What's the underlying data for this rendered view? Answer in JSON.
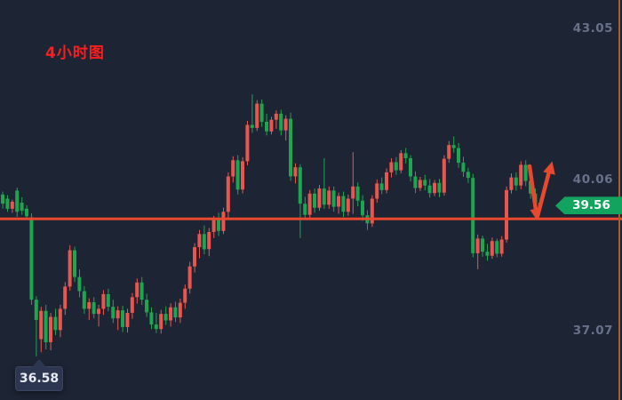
{
  "title": {
    "text": "4小时图"
  },
  "axis": {
    "labels": [
      {
        "text": "43.05",
        "price": 43.05
      },
      {
        "text": "40.06",
        "price": 40.06
      },
      {
        "text": "37.07",
        "price": 37.07
      }
    ]
  },
  "price_badge": {
    "text": "39.56",
    "value": 39.56
  },
  "low_tooltip": {
    "text": "36.58",
    "value": 36.58
  },
  "annotations": {
    "support_line": {
      "price": 39.3
    },
    "bounce_arrow": {
      "description": "hand-drawn arrow: dips to support line then points up"
    }
  },
  "colors": {
    "bg": "#1d2434",
    "title": "#fa1e1e",
    "axis_text": "#68718a",
    "up": "#e8564f",
    "down": "#1ea54f",
    "line": "#e8492f",
    "arrow": "#e6492d",
    "badge": "#12a45f",
    "tooltip_bg": "#2c3650",
    "edge_line": "#a75d31"
  },
  "chart_data": {
    "type": "candlestick",
    "timeframe": "4小时图 (4-hour chart)",
    "color_convention": "chinese: red = up, green = down",
    "price_axis_ticks": [
      43.05,
      40.06,
      37.07
    ],
    "current_price": 39.56,
    "marked_low": 36.58,
    "support_line_price": 39.3,
    "candles_ohlc": [
      [
        39.78,
        39.84,
        39.5,
        39.6
      ],
      [
        39.7,
        39.77,
        39.44,
        39.5
      ],
      [
        39.5,
        39.68,
        39.42,
        39.64
      ],
      [
        39.86,
        39.92,
        39.34,
        39.44
      ],
      [
        39.62,
        39.73,
        39.38,
        39.46
      ],
      [
        39.5,
        39.57,
        39.28,
        39.35
      ],
      [
        39.33,
        39.41,
        37.6,
        37.7
      ],
      [
        37.7,
        37.77,
        36.58,
        37.3
      ],
      [
        36.92,
        37.56,
        36.66,
        37.48
      ],
      [
        37.48,
        37.6,
        36.72,
        36.86
      ],
      [
        36.86,
        37.44,
        36.7,
        37.36
      ],
      [
        37.36,
        37.52,
        37.0,
        37.1
      ],
      [
        37.1,
        37.6,
        36.96,
        37.52
      ],
      [
        37.52,
        38.05,
        37.4,
        37.96
      ],
      [
        37.96,
        38.78,
        37.88,
        38.68
      ],
      [
        38.68,
        38.75,
        38.05,
        38.15
      ],
      [
        38.15,
        38.3,
        37.75,
        37.87
      ],
      [
        37.87,
        37.97,
        37.42,
        37.52
      ],
      [
        37.52,
        37.73,
        37.3,
        37.65
      ],
      [
        37.65,
        37.75,
        37.33,
        37.42
      ],
      [
        37.42,
        37.6,
        37.17,
        37.52
      ],
      [
        37.52,
        37.89,
        37.4,
        37.81
      ],
      [
        37.81,
        37.92,
        37.47,
        37.56
      ],
      [
        37.56,
        37.7,
        37.24,
        37.33
      ],
      [
        37.33,
        37.57,
        37.1,
        37.49
      ],
      [
        37.49,
        37.58,
        37.06,
        37.16
      ],
      [
        37.16,
        37.52,
        37.05,
        37.44
      ],
      [
        37.44,
        37.83,
        37.32,
        37.75
      ],
      [
        37.75,
        38.12,
        37.62,
        38.04
      ],
      [
        38.04,
        38.15,
        37.6,
        37.7
      ],
      [
        37.7,
        37.82,
        37.36,
        37.45
      ],
      [
        37.45,
        37.55,
        37.12,
        37.21
      ],
      [
        37.21,
        37.44,
        37.04,
        37.12
      ],
      [
        37.12,
        37.5,
        37.03,
        37.42
      ],
      [
        37.42,
        37.57,
        37.2,
        37.29
      ],
      [
        37.29,
        37.63,
        37.17,
        37.55
      ],
      [
        37.55,
        37.66,
        37.26,
        37.35
      ],
      [
        37.35,
        37.72,
        37.24,
        37.64
      ],
      [
        37.64,
        38.0,
        37.52,
        37.92
      ],
      [
        37.92,
        38.45,
        37.82,
        38.36
      ],
      [
        38.36,
        38.82,
        38.24,
        38.74
      ],
      [
        38.74,
        39.08,
        38.52,
        39.0
      ],
      [
        39.0,
        39.17,
        38.6,
        38.7
      ],
      [
        38.7,
        39.12,
        38.56,
        39.04
      ],
      [
        39.04,
        39.36,
        38.92,
        39.28
      ],
      [
        39.28,
        39.42,
        38.96,
        39.06
      ],
      [
        39.06,
        39.52,
        39.0,
        39.44
      ],
      [
        39.44,
        40.22,
        39.32,
        40.14
      ],
      [
        40.14,
        40.54,
        40.02,
        40.46
      ],
      [
        40.46,
        40.56,
        39.78,
        39.88
      ],
      [
        39.88,
        40.52,
        39.8,
        40.44
      ],
      [
        40.44,
        41.24,
        40.36,
        41.16
      ],
      [
        41.16,
        41.76,
        41.0,
        41.1
      ],
      [
        41.1,
        41.65,
        41.04,
        41.58
      ],
      [
        41.58,
        41.66,
        41.12,
        41.22
      ],
      [
        41.22,
        41.38,
        40.95,
        41.03
      ],
      [
        41.03,
        41.32,
        40.97,
        41.26
      ],
      [
        41.26,
        41.45,
        41.08,
        41.38
      ],
      [
        41.38,
        41.46,
        40.95,
        41.05
      ],
      [
        41.05,
        41.35,
        40.85,
        41.28
      ],
      [
        41.28,
        41.4,
        40.05,
        40.14
      ],
      [
        40.14,
        40.4,
        40.0,
        40.32
      ],
      [
        40.32,
        40.38,
        38.92,
        39.6
      ],
      [
        39.6,
        39.74,
        39.28,
        39.38
      ],
      [
        39.38,
        39.87,
        39.3,
        39.8
      ],
      [
        39.8,
        39.9,
        39.42,
        39.52
      ],
      [
        39.52,
        39.97,
        39.46,
        39.9
      ],
      [
        39.9,
        40.5,
        39.5,
        39.58
      ],
      [
        39.58,
        39.94,
        39.5,
        39.86
      ],
      [
        39.86,
        39.94,
        39.44,
        39.54
      ],
      [
        39.54,
        39.82,
        39.4,
        39.75
      ],
      [
        39.75,
        39.84,
        39.34,
        39.44
      ],
      [
        39.44,
        39.78,
        39.36,
        39.7
      ],
      [
        39.7,
        40.62,
        39.4,
        39.94
      ],
      [
        39.94,
        40.02,
        39.55,
        39.66
      ],
      [
        39.66,
        39.77,
        39.26,
        39.37
      ],
      [
        39.37,
        39.47,
        39.08,
        39.21
      ],
      [
        39.21,
        39.77,
        39.14,
        39.7
      ],
      [
        39.7,
        40.08,
        39.62,
        40.0
      ],
      [
        40.0,
        40.12,
        39.79,
        39.87
      ],
      [
        39.87,
        40.3,
        39.81,
        40.22
      ],
      [
        40.22,
        40.5,
        40.12,
        40.42
      ],
      [
        40.42,
        40.52,
        40.17,
        40.26
      ],
      [
        40.26,
        40.66,
        40.2,
        40.6
      ],
      [
        40.6,
        40.7,
        40.4,
        40.5
      ],
      [
        40.5,
        40.56,
        40.04,
        40.14
      ],
      [
        40.14,
        40.24,
        39.81,
        39.91
      ],
      [
        39.91,
        40.13,
        39.85,
        40.07
      ],
      [
        40.07,
        40.17,
        39.86,
        39.96
      ],
      [
        39.96,
        40.09,
        39.72,
        39.81
      ],
      [
        39.81,
        40.07,
        39.75,
        40.01
      ],
      [
        40.01,
        40.09,
        39.73,
        39.82
      ],
      [
        39.82,
        40.56,
        39.76,
        40.49
      ],
      [
        40.49,
        40.84,
        40.41,
        40.76
      ],
      [
        40.76,
        40.93,
        40.61,
        40.7
      ],
      [
        40.7,
        40.8,
        40.31,
        40.41
      ],
      [
        40.41,
        40.53,
        40.13,
        40.23
      ],
      [
        40.23,
        40.31,
        40.01,
        40.11
      ],
      [
        40.11,
        40.19,
        38.54,
        38.62
      ],
      [
        38.62,
        38.99,
        38.3,
        38.91
      ],
      [
        38.91,
        38.97,
        38.55,
        38.65
      ],
      [
        38.65,
        38.81,
        38.47,
        38.57
      ],
      [
        38.57,
        38.93,
        38.51,
        38.86
      ],
      [
        38.86,
        38.91,
        38.54,
        38.61
      ],
      [
        38.61,
        38.96,
        38.55,
        38.89
      ],
      [
        38.89,
        39.94,
        38.83,
        39.87
      ],
      [
        39.87,
        40.2,
        39.8,
        40.12
      ],
      [
        40.12,
        40.22,
        39.86,
        39.96
      ],
      [
        39.96,
        40.44,
        39.89,
        40.37
      ],
      [
        40.37,
        40.46,
        39.95,
        40.05
      ],
      [
        40.05,
        40.15,
        39.7,
        39.8
      ],
      [
        39.8,
        39.9,
        39.52,
        39.62
      ],
      [
        39.62,
        39.7,
        39.48,
        39.56
      ]
    ]
  }
}
